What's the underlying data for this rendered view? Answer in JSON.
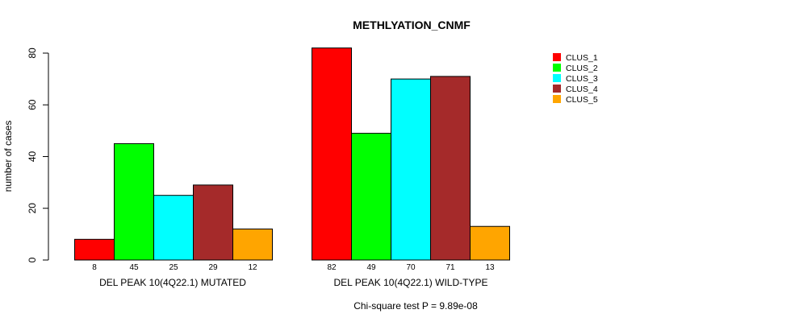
{
  "chart_data": {
    "type": "bar",
    "title": "METHLYATION_CNMF",
    "ylabel": "number of cases",
    "ylim": [
      0,
      80
    ],
    "yticks": [
      0,
      20,
      40,
      60,
      80
    ],
    "groups": [
      {
        "name": "DEL PEAK 10(4Q22.1) MUTATED",
        "values": [
          8,
          45,
          25,
          29,
          12
        ]
      },
      {
        "name": "DEL PEAK 10(4Q22.1) WILD-TYPE",
        "values": [
          82,
          49,
          70,
          71,
          13
        ]
      }
    ],
    "series": [
      {
        "name": "CLUS_1",
        "color": "#ff0000"
      },
      {
        "name": "CLUS_2",
        "color": "#00ff00"
      },
      {
        "name": "CLUS_3",
        "color": "#00ffff"
      },
      {
        "name": "CLUS_4",
        "color": "#a52a2a"
      },
      {
        "name": "CLUS_5",
        "color": "#ffa500"
      }
    ],
    "legend_position": "top-right",
    "footnote": "Chi-square test P = 9.89e-08"
  }
}
